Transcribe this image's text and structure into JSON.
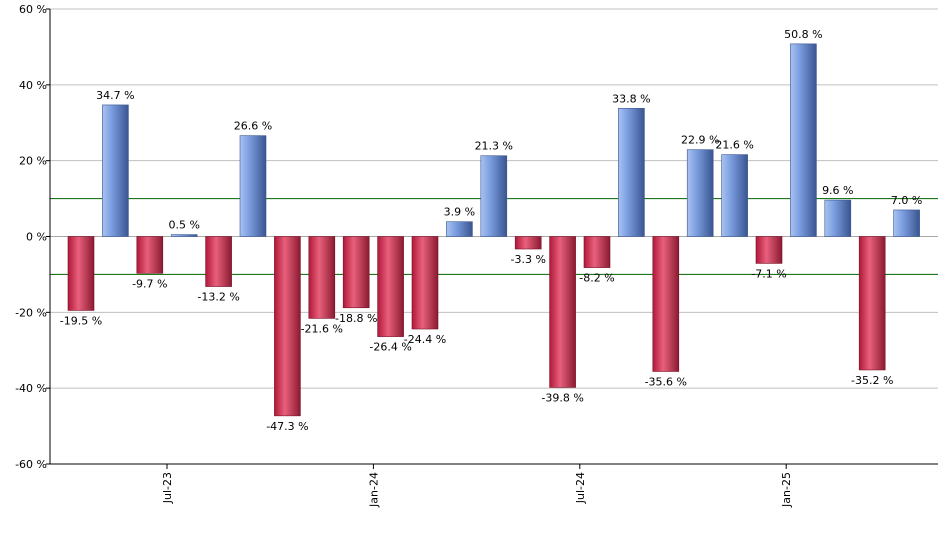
{
  "chart_data": {
    "type": "bar",
    "title": "",
    "xlabel": "",
    "ylabel": "",
    "ylim": [
      -60,
      60
    ],
    "y_ticks": [
      {
        "value": 60,
        "label": "60 %"
      },
      {
        "value": 40,
        "label": "40 %"
      },
      {
        "value": 20,
        "label": "20 %"
      },
      {
        "value": 0,
        "label": "0 %"
      },
      {
        "value": -20,
        "label": "-20 %"
      },
      {
        "value": -40,
        "label": "-40 %"
      },
      {
        "value": -60,
        "label": "-60 %"
      }
    ],
    "x_ticks": [
      {
        "index": 2.5,
        "label": "Jul-23"
      },
      {
        "index": 8.5,
        "label": "Jan-24"
      },
      {
        "index": 14.5,
        "label": "Jul-24"
      },
      {
        "index": 20.5,
        "label": "Jan-25"
      }
    ],
    "reference_lines": [
      10,
      -10
    ],
    "grid": true,
    "legend": "none",
    "colors": {
      "positive": "#6f93d8",
      "negative": "#cc3355",
      "reference": "#006600",
      "grid": "#c0c0c0"
    },
    "values": [
      -19.5,
      34.7,
      -9.7,
      0.5,
      -13.2,
      26.6,
      -47.3,
      -21.6,
      -18.8,
      -26.4,
      -24.4,
      3.9,
      21.3,
      -3.3,
      -39.8,
      -8.2,
      33.8,
      -35.6,
      22.9,
      21.6,
      -7.1,
      50.8,
      9.6,
      -35.2,
      7.0
    ],
    "data_labels": [
      "-19.5 %",
      "34.7 %",
      "-9.7 %",
      "0.5 %",
      "-13.2 %",
      "26.6 %",
      "-47.3 %",
      "-21.6 %",
      "-18.8 %",
      "-26.4 %",
      "-24.4 %",
      "3.9 %",
      "21.3 %",
      "-3.3 %",
      "-39.8 %",
      "-8.2 %",
      "33.8 %",
      "-35.6 %",
      "22.9 %",
      "21.6 %",
      "-7.1 %",
      "50.8 %",
      "9.6 %",
      "-35.2 %",
      "7.0 %"
    ]
  }
}
